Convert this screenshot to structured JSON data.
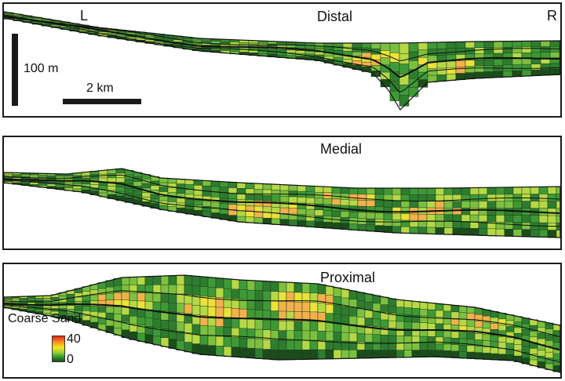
{
  "scale": {
    "vertical_label": "100 m",
    "horizontal_label": "2 km"
  },
  "orientation": {
    "left": "L",
    "right": "R"
  },
  "panels": [
    {
      "id": "distal",
      "title": "Distal"
    },
    {
      "id": "medial",
      "title": "Medial"
    },
    {
      "id": "proximal",
      "title": "Proximal"
    }
  ],
  "legend": {
    "title": "Coarse Sand",
    "max_label": "40",
    "min_label": "0"
  },
  "colors": {
    "ramp": [
      "#1b4d1b",
      "#2e7d2e",
      "#3f9a35",
      "#7cc040",
      "#b6d846",
      "#eae23a",
      "#f3b14c"
    ],
    "border": "#1a1a1a"
  }
}
